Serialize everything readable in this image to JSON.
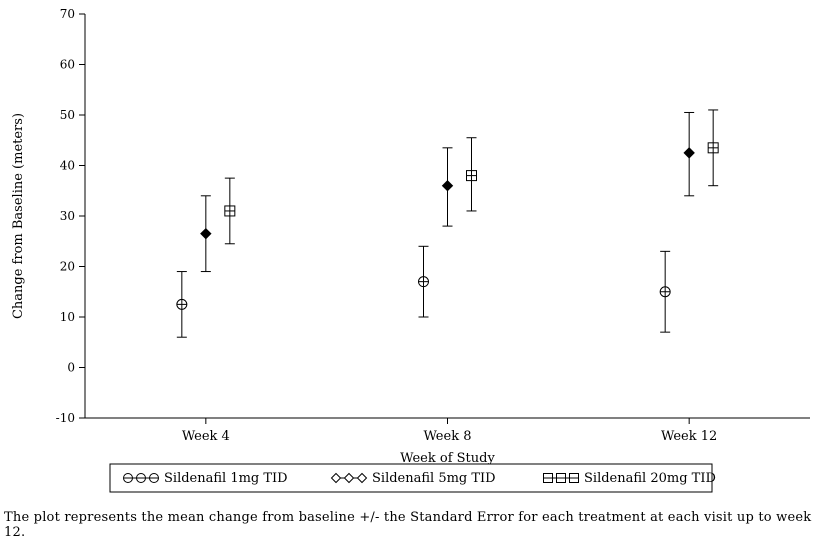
{
  "chart_data": {
    "type": "scatter",
    "title": "",
    "xlabel": "Week of Study",
    "ylabel": "Change from Baseline (meters)",
    "ylim": [
      -10,
      70
    ],
    "yticks": [
      -10,
      0,
      10,
      20,
      30,
      40,
      50,
      60,
      70
    ],
    "categories": [
      "Week 4",
      "Week 8",
      "Week 12"
    ],
    "grid": false,
    "legend_position": "bottom-boxed",
    "series": [
      {
        "name": "Sildenafil 1mg TID",
        "marker": "circle-plus",
        "means": [
          12.5,
          17,
          15
        ],
        "lower": [
          6,
          10,
          7
        ],
        "upper": [
          19,
          24,
          23
        ]
      },
      {
        "name": "Sildenafil 5mg TID",
        "marker": "diamond",
        "means": [
          26.5,
          36,
          42.5
        ],
        "lower": [
          19,
          28,
          34
        ],
        "upper": [
          34,
          43.5,
          50.5
        ]
      },
      {
        "name": "Sildenafil 20mg TID",
        "marker": "square-plus",
        "means": [
          31,
          38,
          43.5
        ],
        "lower": [
          24.5,
          31,
          36
        ],
        "upper": [
          37.5,
          45.5,
          51
        ]
      }
    ],
    "caption": "The plot represents the mean change from baseline +/- the Standard Error for each treatment at each visit up to week 12.",
    "colors": {
      "stroke": "#000000",
      "background": "#ffffff"
    }
  }
}
